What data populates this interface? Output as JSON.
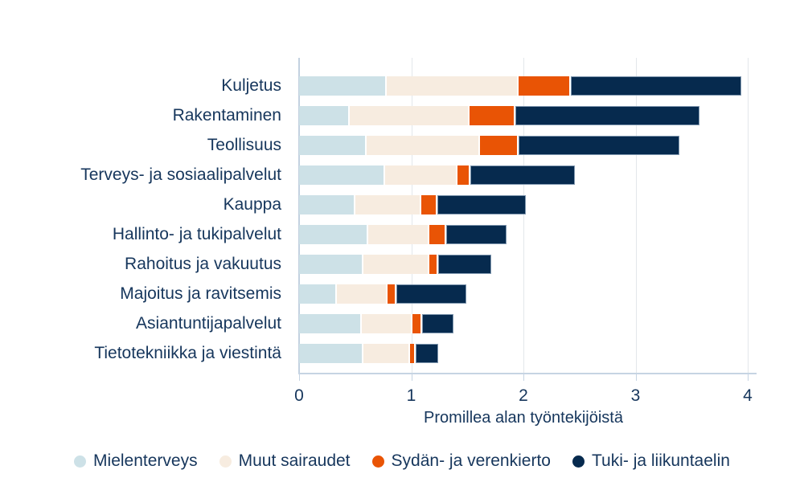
{
  "chart_data": {
    "type": "bar",
    "orientation": "horizontal-stacked",
    "xlabel": "Promillea alan työntekijöistä",
    "xlim": [
      0,
      4
    ],
    "xticks": [
      "0",
      "1",
      "2",
      "3",
      "4"
    ],
    "grid": true,
    "legend_position": "bottom",
    "categories": [
      "Kuljetus",
      "Rakentaminen",
      "Teollisuus",
      "Terveys- ja sosiaalipalvelut",
      "Kauppa",
      "Hallinto- ja tukipalvelut",
      "Rahoitus ja vakuutus",
      "Majoitus ja ravitsemis",
      "Asiantuntijapalvelut",
      "Tietotekniikka ja viestintä"
    ],
    "series": [
      {
        "name": "Mielenterveys",
        "color": "#cde1e7",
        "values": [
          0.78,
          0.45,
          0.6,
          0.77,
          0.5,
          0.62,
          0.57,
          0.34,
          0.56,
          0.57
        ]
      },
      {
        "name": "Muut sairaudet",
        "color": "#f7ece0",
        "values": [
          1.18,
          1.07,
          1.01,
          0.64,
          0.59,
          0.54,
          0.59,
          0.45,
          0.45,
          0.42
        ]
      },
      {
        "name": "Sydän- ja verenkierto",
        "color": "#e95405",
        "values": [
          0.46,
          0.41,
          0.35,
          0.12,
          0.14,
          0.15,
          0.08,
          0.08,
          0.09,
          0.05
        ]
      },
      {
        "name": "Tuki- ja liikuntaelin",
        "color": "#062a4e",
        "values": [
          1.52,
          1.64,
          1.43,
          0.93,
          0.79,
          0.54,
          0.47,
          0.62,
          0.28,
          0.2
        ]
      }
    ]
  },
  "style": {
    "text_color": "#16365c",
    "gridline_color": "#e3e7eb",
    "axis_color": "#c6d4e3",
    "outline_color": "#7e96ae",
    "background": "#ffffff"
  }
}
